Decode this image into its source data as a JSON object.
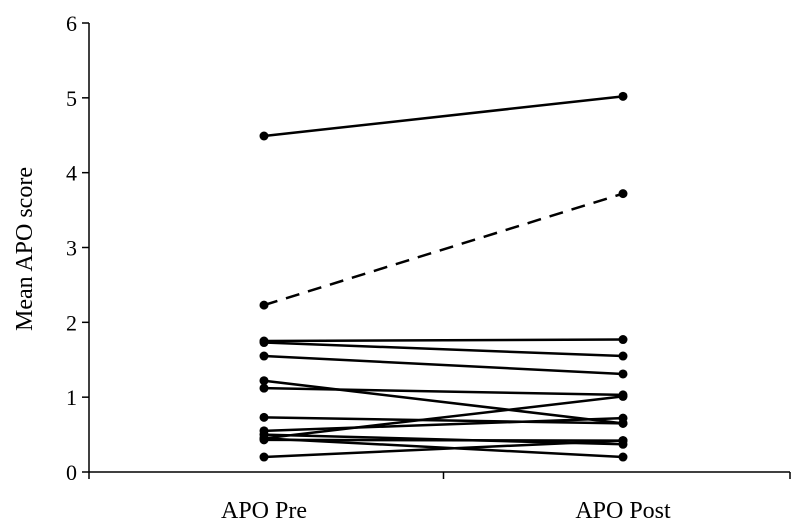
{
  "chart_data": {
    "type": "line",
    "title": "",
    "xlabel": "",
    "ylabel": "Mean APO score",
    "categories": [
      "APO Pre",
      "APO Post"
    ],
    "ylim": [
      0,
      6
    ],
    "yticks": [
      0,
      1,
      2,
      3,
      4,
      5,
      6
    ],
    "grid": false,
    "legend": "none",
    "colors": {
      "line": "#000000",
      "marker": "#000000"
    },
    "series": [
      {
        "values": [
          4.49,
          5.02
        ],
        "style": "solid"
      },
      {
        "values": [
          2.23,
          3.72
        ],
        "style": "dashed"
      },
      {
        "values": [
          1.75,
          1.77
        ],
        "style": "solid"
      },
      {
        "values": [
          1.73,
          1.55
        ],
        "style": "solid"
      },
      {
        "values": [
          1.55,
          1.31
        ],
        "style": "solid"
      },
      {
        "values": [
          1.22,
          0.65
        ],
        "style": "solid"
      },
      {
        "values": [
          1.12,
          1.03
        ],
        "style": "solid"
      },
      {
        "values": [
          0.73,
          0.65
        ],
        "style": "solid"
      },
      {
        "values": [
          0.55,
          0.72
        ],
        "style": "solid"
      },
      {
        "values": [
          0.5,
          0.37
        ],
        "style": "solid"
      },
      {
        "values": [
          0.45,
          1.01
        ],
        "style": "solid"
      },
      {
        "values": [
          0.43,
          0.42
        ],
        "style": "solid"
      },
      {
        "values": [
          0.2,
          0.42
        ],
        "style": "solid"
      },
      {
        "values": [
          0.45,
          0.2
        ],
        "style": "solid"
      }
    ]
  }
}
